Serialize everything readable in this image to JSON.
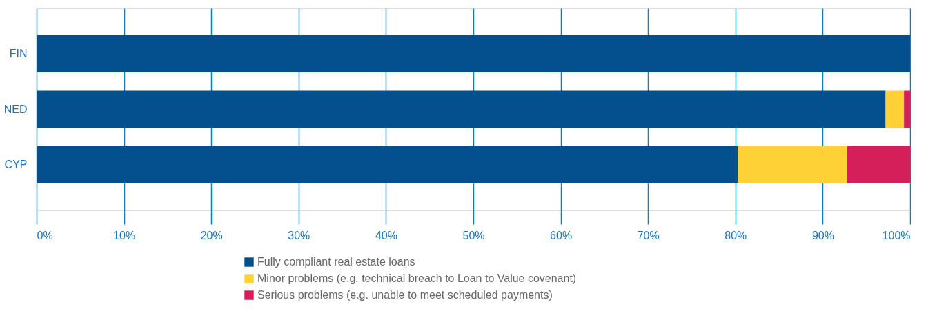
{
  "chart_data": {
    "type": "bar",
    "orientation": "horizontal",
    "stacked": true,
    "categories": [
      "FIN",
      "NED",
      "CYP"
    ],
    "series": [
      {
        "name": "Fully compliant real estate loans",
        "color": "#04508f",
        "values": [
          100,
          97.2,
          80.3
        ]
      },
      {
        "name": "Minor problems (e.g. technical breach to Loan to Value covenant)",
        "color": "#fed136",
        "values": [
          0,
          2.1,
          12.5
        ]
      },
      {
        "name": "Serious problems (e.g. unable to meet scheduled payments)",
        "color": "#d41f5a",
        "values": [
          0,
          0.7,
          7.2
        ]
      }
    ],
    "xlim": [
      0,
      100
    ],
    "xticks": [
      {
        "value": 0,
        "label": "0%"
      },
      {
        "value": 10,
        "label": "10%"
      },
      {
        "value": 20,
        "label": "20%"
      },
      {
        "value": 30,
        "label": "30%"
      },
      {
        "value": 40,
        "label": "40%"
      },
      {
        "value": 50,
        "label": "50%"
      },
      {
        "value": 60,
        "label": "60%"
      },
      {
        "value": 70,
        "label": "70%"
      },
      {
        "value": 80,
        "label": "80%"
      },
      {
        "value": 90,
        "label": "90%"
      },
      {
        "value": 100,
        "label": "100%"
      }
    ],
    "grid": "x",
    "legend": "bottom"
  }
}
